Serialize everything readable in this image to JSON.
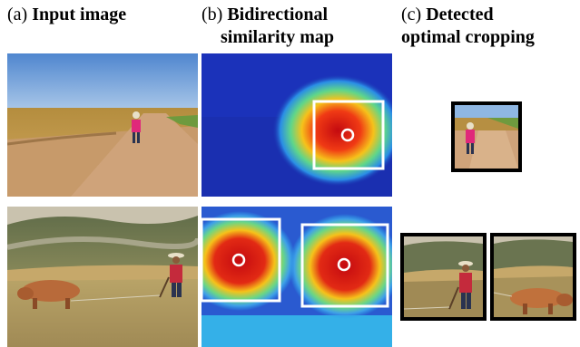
{
  "captions": {
    "a": {
      "tag": "(a)",
      "title": "Input image"
    },
    "b": {
      "tag": "(b)",
      "line1": "Bidirectional",
      "line2": "similarity map"
    },
    "c": {
      "tag": "(c)",
      "line1": "Detected",
      "line2": "optimal cropping"
    }
  },
  "colors": {
    "sky": "#6f9fd8",
    "field": "#c8a15c",
    "dirt": "#c69a6c",
    "heat_low": "#1a2fb0",
    "heat_high": "#d8101a",
    "crop_border": "#000000",
    "marker": "#ffffff"
  }
}
